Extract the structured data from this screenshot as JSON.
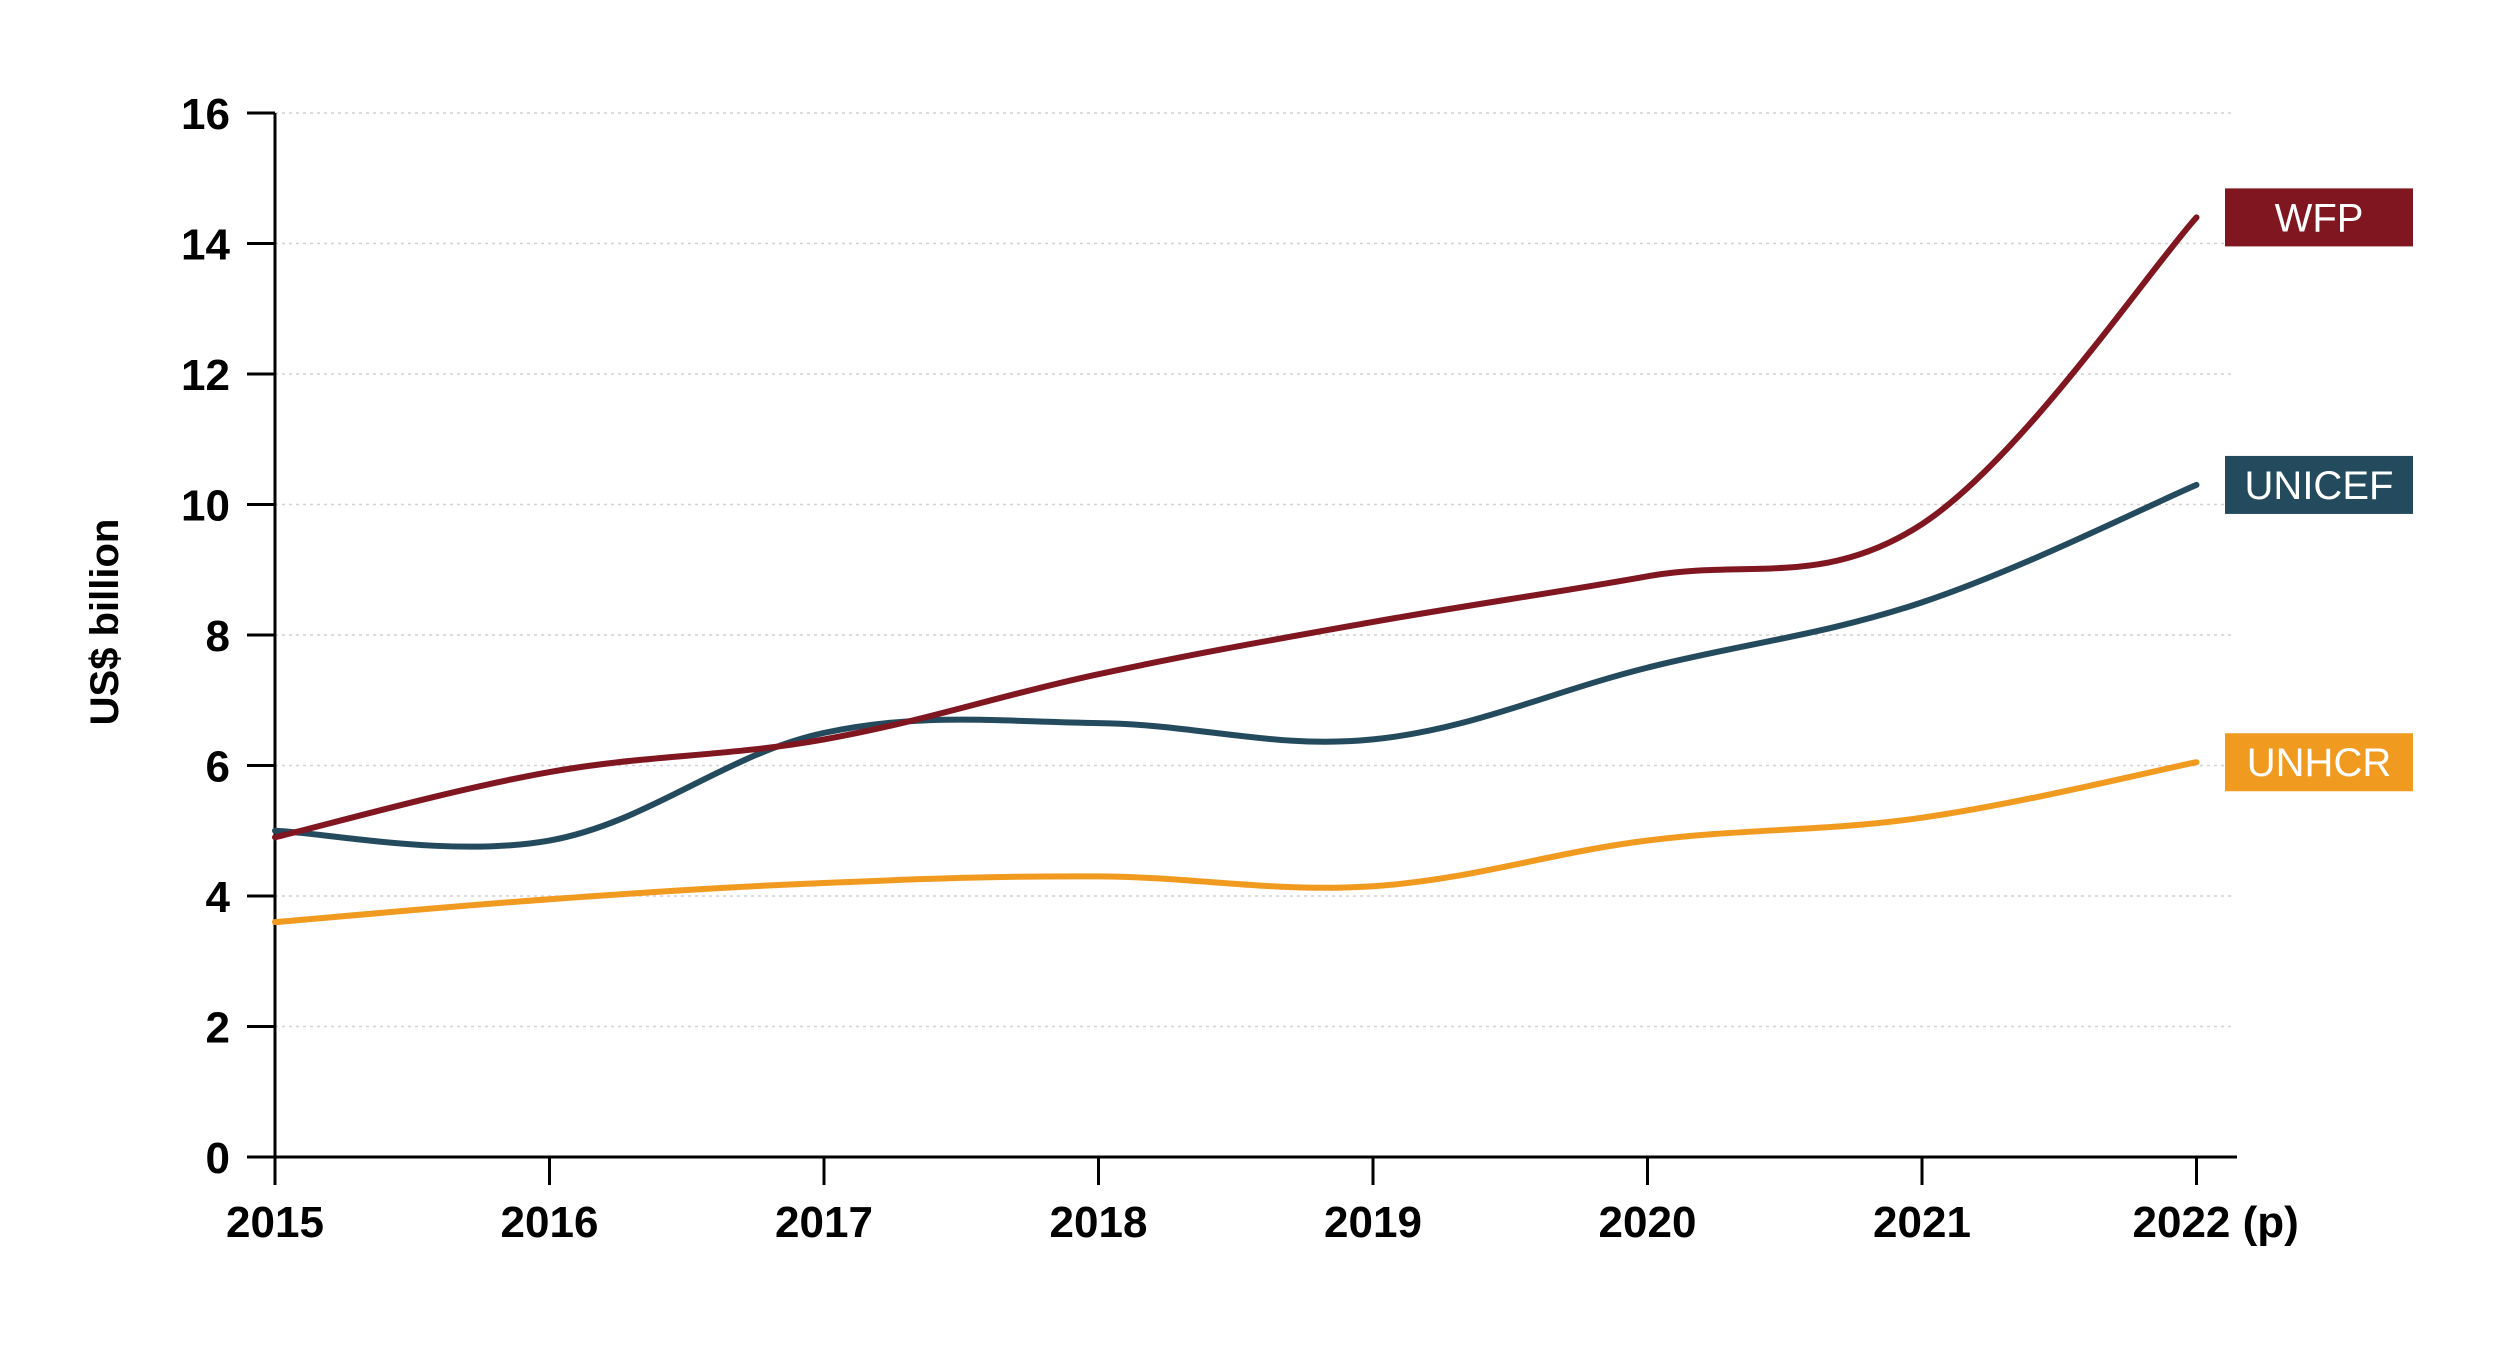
{
  "chart_data": {
    "type": "line",
    "ylabel": "US$ billion",
    "xlabel": "",
    "categories": [
      "2015",
      "2016",
      "2017",
      "2018",
      "2019",
      "2020",
      "2021",
      "2022 (p)"
    ],
    "ylim": [
      0,
      16
    ],
    "yticks": [
      0,
      2,
      4,
      6,
      8,
      10,
      12,
      14,
      16
    ],
    "grid": true,
    "legend": "inline-right",
    "series": [
      {
        "name": "WFP",
        "color": "#7f1620",
        "values": [
          4.9,
          5.9,
          6.4,
          7.4,
          8.2,
          8.9,
          9.7,
          14.4
        ]
      },
      {
        "name": "UNICEF",
        "color": "#244a5e",
        "values": [
          5.0,
          4.85,
          6.5,
          6.65,
          6.4,
          7.5,
          8.5,
          10.3
        ]
      },
      {
        "name": "UNHCR",
        "color": "#f19a20",
        "values": [
          3.6,
          3.95,
          4.2,
          4.3,
          4.15,
          4.85,
          5.2,
          6.05
        ]
      }
    ]
  }
}
